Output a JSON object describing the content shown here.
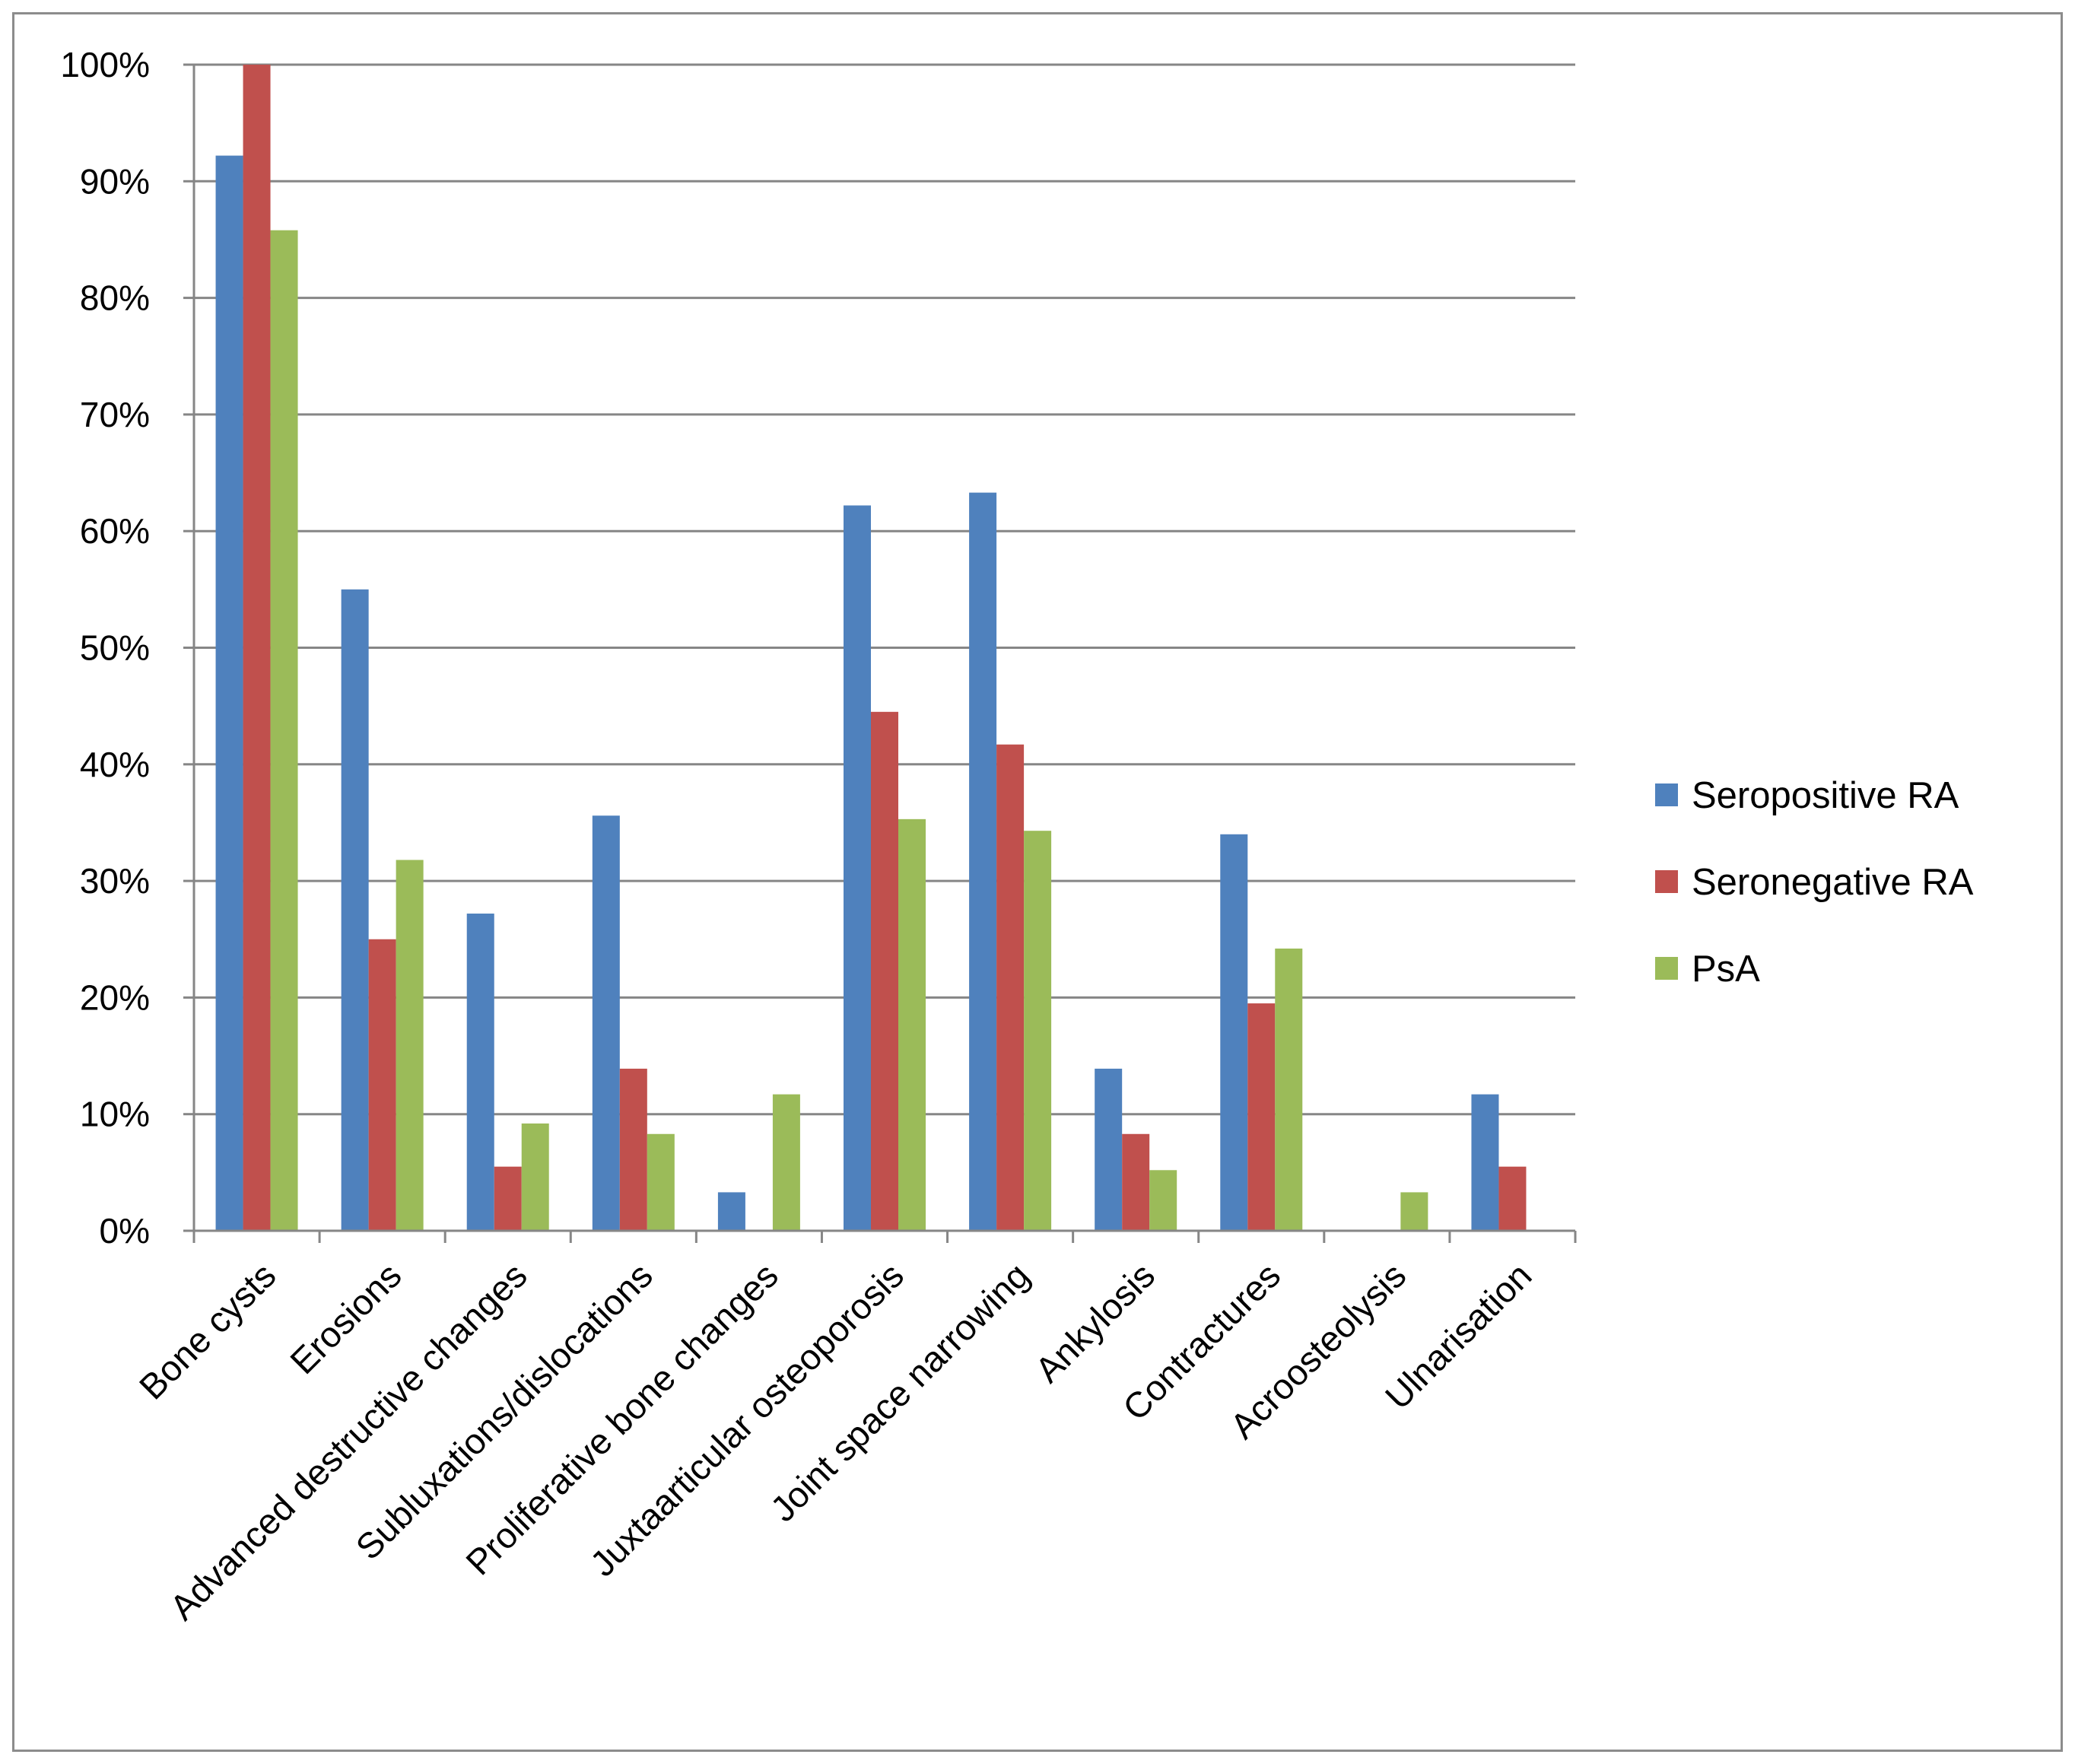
{
  "chart_data": {
    "type": "bar",
    "categories": [
      "Bone cysts",
      "Erosions",
      "Advanced destructive changes",
      "Subluxations/dislocations",
      "Proliferative bone changes",
      "Juxtaarticular osteoporosis",
      "Joint space narrowing",
      "Ankylosis",
      "Contractures",
      "Acroosteolysis",
      "Ulnarisation"
    ],
    "series": [
      {
        "name": "Seropositive RA",
        "color": "#4f81bd",
        "values": [
          92.2,
          55.0,
          27.2,
          35.6,
          3.3,
          62.2,
          63.3,
          13.9,
          34.0,
          0,
          11.7
        ]
      },
      {
        "name": "Seronegative RA",
        "color": "#c0504d",
        "values": [
          100,
          25.0,
          5.5,
          13.9,
          0,
          44.5,
          41.7,
          8.3,
          19.5,
          0,
          5.5
        ]
      },
      {
        "name": "PsA",
        "color": "#9bbb59",
        "values": [
          85.8,
          31.8,
          9.2,
          8.3,
          11.7,
          35.3,
          34.3,
          5.2,
          24.2,
          3.3,
          0
        ]
      }
    ],
    "y_ticks": [
      "0%",
      "10%",
      "20%",
      "30%",
      "40%",
      "50%",
      "60%",
      "70%",
      "80%",
      "90%",
      "100%"
    ],
    "ylim": [
      0,
      100
    ],
    "title": "",
    "xlabel": "",
    "ylabel": "",
    "grid": true,
    "legend_position": "right",
    "gridline_color": "#868686"
  }
}
